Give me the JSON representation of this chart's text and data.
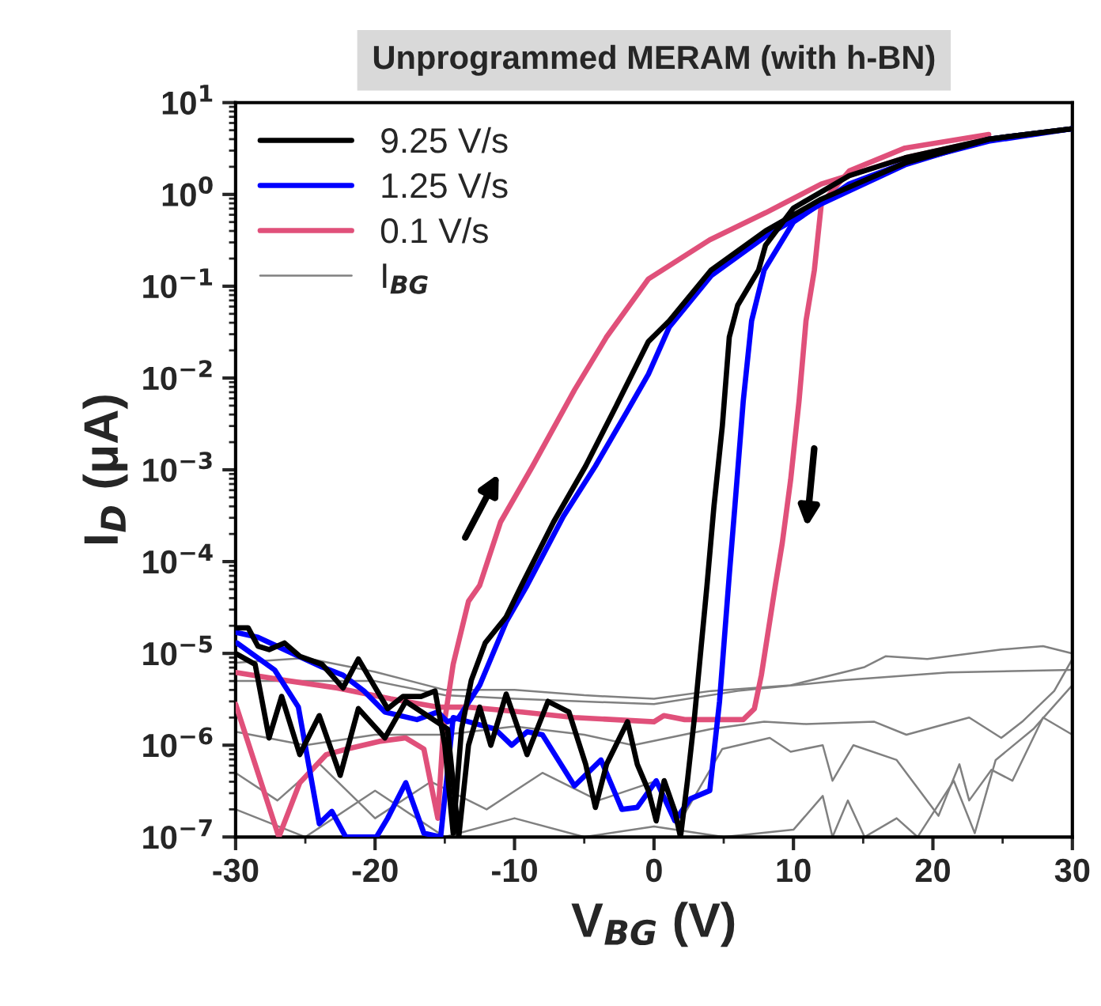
{
  "chart_data": {
    "type": "line",
    "title": "Unprogrammed MERAM (with h-BN)",
    "xlabel": "V$_{BG}$ (V)",
    "ylabel": "I$_{D}$ (μA)",
    "log": "y",
    "xlim": [
      -30,
      30
    ],
    "xticks": [
      -30,
      -20,
      -10,
      0,
      10,
      20,
      30
    ],
    "ylim": [
      1e-07,
      10
    ],
    "yticks": [
      {
        "value": 1e-07,
        "label": "10$^{−7}$"
      },
      {
        "value": 1e-06,
        "label": "10$^{−6}$"
      },
      {
        "value": 1e-05,
        "label": "10$^{−5}$"
      },
      {
        "value": 0.0001,
        "label": "10$^{−4}$"
      },
      {
        "value": 0.001,
        "label": "10$^{−3}$"
      },
      {
        "value": 0.01,
        "label": "10$^{−2}$"
      },
      {
        "value": 0.1,
        "label": "10$^{−1}$"
      },
      {
        "value": 1,
        "label": "10$^{0}$"
      },
      {
        "value": 10,
        "label": "10$^{1}$"
      }
    ],
    "legend": "top left",
    "line_style": "solid",
    "series": [
      {
        "name": "9.25 V/s",
        "color": "#000000",
        "x": [
          -30,
          -29.1,
          -28.4,
          -27.6,
          -26.5,
          -25.4,
          -23.8,
          -22.3,
          -21.2,
          -20.2,
          -19.1,
          -18.0,
          -16.7,
          -15.7,
          -15.0,
          -14.4,
          -13.8,
          -13.1,
          -12.1,
          -10.6,
          -9.5,
          -7.2,
          -4.9,
          -2.7,
          -0.4,
          1.1,
          4.1,
          8,
          12,
          18,
          24,
          30
        ],
        "values": [
          1.9e-05,
          1.9e-05,
          1.2e-05,
          1.1e-05,
          1.3e-05,
          9.3e-06,
          7.6e-06,
          4.2e-06,
          8.7e-06,
          4.8e-06,
          2.5e-06,
          3.4e-06,
          3.4e-06,
          3.9e-06,
          1e-06,
          1.1e-07,
          1.5e-06,
          5.1e-06,
          1.3e-05,
          2.5e-05,
          5.5e-05,
          0.00027,
          0.0011,
          0.005,
          0.025,
          0.042,
          0.15,
          0.4,
          0.89,
          2.2,
          4.0,
          5.2
        ]
      },
      {
        "color": "#000000",
        "x": [
          30,
          24,
          18,
          14,
          10,
          8,
          7.5,
          6.0,
          5.4,
          4.9,
          4.3,
          3.8,
          2.9,
          2.4,
          1.9,
          1.5,
          0.73,
          0.16,
          -0.4,
          -1.2,
          -1.9,
          -3.4,
          -4.2,
          -4.9,
          -6.1,
          -7.6,
          -9.1,
          -10.6,
          -11.7,
          -12.5,
          -13.3,
          -14.0,
          -14.8,
          -17.8,
          -19.3,
          -21.2,
          -22.5,
          -24.0,
          -25.4,
          -26.7,
          -27.6,
          -28.6,
          -30
        ],
        "values": [
          5.2,
          4.0,
          2.5,
          1.6,
          0.71,
          0.28,
          0.15,
          0.062,
          0.028,
          0.003,
          0.0004,
          5.5e-05,
          2e-06,
          4.1e-07,
          1e-07,
          1.9e-07,
          4.1e-07,
          1.5e-07,
          3.2e-07,
          6.2e-07,
          1.8e-06,
          6.2e-07,
          2.1e-07,
          6.2e-07,
          2.3e-06,
          3e-06,
          7.9e-07,
          3.6e-06,
          1e-06,
          2.6e-06,
          1e-06,
          1e-07,
          1.5e-06,
          3e-06,
          1.2e-06,
          2.5e-06,
          4.7e-07,
          2.1e-06,
          7.9e-07,
          3.4e-06,
          1.2e-06,
          7.6e-06,
          1e-05
        ]
      },
      {
        "name": "1.25 V/s",
        "color": "#0000ff",
        "x": [
          -30,
          -28.4,
          -26.5,
          -23.8,
          -22.3,
          -20.8,
          -19.3,
          -17.0,
          -15.5,
          -14.8,
          -14.0,
          -12.5,
          -10.6,
          -9.1,
          -6.5,
          -4.2,
          -1.9,
          -0.4,
          1.1,
          4.1,
          8,
          12,
          18,
          24,
          30
        ],
        "values": [
          1.7e-05,
          1.5e-05,
          1.1e-05,
          7.1e-06,
          5.8e-06,
          3.9e-06,
          2.3e-06,
          1.9e-06,
          2.3e-06,
          1.8e-06,
          2e-06,
          4.5e-06,
          2.2e-05,
          5.5e-05,
          0.00031,
          0.0011,
          0.0044,
          0.011,
          0.036,
          0.13,
          0.35,
          0.79,
          2.1,
          4.0,
          5.2
        ]
      },
      {
        "color": "#0000ff",
        "x": [
          30,
          24,
          18,
          14,
          10,
          7.9,
          7.0,
          6.4,
          5.8,
          5.4,
          4.7,
          4.0,
          2.6,
          1.5,
          0.16,
          -1.2,
          -2.3,
          -3.8,
          -5.7,
          -8.0,
          -9.1,
          -10.2,
          -11.4,
          -13.3,
          -14.4,
          -15.3,
          -16.5,
          -17.8,
          -19.1,
          -19.9,
          -22.1,
          -23.1,
          -24.0,
          -25.5,
          -27.2,
          -29.9
        ],
        "values": [
          5.2,
          3.8,
          2.2,
          1.3,
          0.5,
          0.15,
          0.042,
          0.0056,
          0.0004,
          7.2e-05,
          3e-06,
          3.2e-07,
          2.6e-07,
          1.5e-07,
          4.1e-07,
          2.1e-07,
          2e-07,
          6.9e-07,
          3.6e-07,
          1.3e-06,
          1.4e-06,
          1e-06,
          1.5e-06,
          1.8e-06,
          2e-06,
          1e-07,
          1.1e-07,
          3.9e-07,
          1.6e-07,
          1e-07,
          1e-07,
          1.9e-07,
          1.4e-07,
          2.6e-06,
          6.6e-06,
          1.3e-05
        ]
      },
      {
        "name": "0.1 V/s",
        "color": "#e0507a",
        "x": [
          -30,
          -26.9,
          -25.4,
          -23.5,
          -22.0,
          -19.7,
          -17.8,
          -16.5,
          -15.5,
          -15.1,
          -14.4,
          -13.3,
          -12.5,
          -11.0,
          -8.7,
          -5.7,
          -3.4,
          -0.4,
          4,
          8,
          12,
          18,
          24
        ],
        "values": [
          2.8e-06,
          1e-07,
          3.9e-07,
          7.9e-07,
          9.1e-07,
          1.1e-06,
          1.2e-06,
          9.1e-07,
          1.6e-07,
          1.5e-06,
          7.6e-06,
          3.7e-05,
          5.5e-05,
          0.00027,
          0.0011,
          0.0074,
          0.028,
          0.12,
          0.32,
          0.63,
          1.3,
          2.5,
          4.0
        ]
      },
      {
        "color": "#e0507a",
        "x": [
          24,
          18,
          14,
          12,
          11.5,
          10.9,
          10.4,
          9.8,
          9.2,
          8.7,
          7.7,
          7.2,
          6.4,
          2.2,
          0.7,
          0.0,
          -5.7,
          -9.5,
          -13.3,
          -15.5,
          -18.9,
          -22.7,
          -26.5,
          -30
        ],
        "values": [
          4.5,
          3.2,
          1.8,
          0.79,
          0.15,
          0.042,
          0.0056,
          0.00078,
          0.00016,
          5.5e-05,
          5.8e-06,
          2.5e-06,
          1.9e-06,
          1.9e-06,
          2.1e-06,
          1.8e-06,
          2e-06,
          2.3e-06,
          2.6e-06,
          2.6e-06,
          3.2e-06,
          4.2e-06,
          5.1e-06,
          6.2e-06
        ]
      },
      {
        "name": "I$_{BG}$",
        "color": "#808080",
        "x": [
          -30,
          -25,
          -20,
          -15,
          -10,
          -5,
          0,
          4.1,
          9.8,
          15.1,
          16.6,
          19.6,
          24.9,
          27.9,
          30
        ],
        "values": [
          7.9e-06,
          8.9e-06,
          6.3e-06,
          4e-06,
          4e-06,
          3.5e-06,
          3.2e-06,
          3.9e-06,
          4.5e-06,
          7.1e-06,
          9.3e-06,
          8.7e-06,
          1.1e-05,
          1.2e-05,
          1e-05
        ]
      },
      {
        "color": "#808080",
        "x": [
          -30,
          -20,
          -15,
          -10,
          0,
          6.0,
          13.6,
          21.1,
          30
        ],
        "values": [
          5e-06,
          5e-06,
          3.5e-06,
          3.2e-06,
          2.8e-06,
          3.9e-06,
          5.1e-06,
          6.2e-06,
          6.6e-06
        ]
      },
      {
        "color": "#808080",
        "x": [
          -30,
          -25,
          -20,
          -15,
          -10,
          -5,
          -1.5,
          4.1,
          7.9,
          10.9,
          15.8,
          18.1,
          22.6,
          24.9,
          26.4,
          28.7,
          30
        ],
        "values": [
          1.4e-06,
          1e-06,
          1.3e-06,
          1.3e-06,
          1.6e-06,
          1.3e-06,
          1e-06,
          1.5e-06,
          1.8e-06,
          1.7e-06,
          1.8e-06,
          1.3e-06,
          2e-06,
          1.2e-06,
          1.8e-06,
          3.9e-06,
          8.7e-06
        ]
      },
      {
        "color": "#808080",
        "x": [
          -30,
          -27,
          -24,
          -20,
          -16,
          -12,
          -8,
          -4,
          0,
          2,
          4.9,
          8.3,
          9.8,
          12.1,
          12.8,
          14.3,
          17.4,
          20.4,
          21.9,
          22.6,
          24.2,
          25.7,
          27.9,
          30
        ],
        "values": [
          5e-07,
          2.5e-07,
          6.3e-07,
          1.6e-07,
          4e-07,
          2e-07,
          5e-07,
          2.5e-07,
          4e-07,
          1.6e-07,
          9.1e-07,
          1.2e-06,
          8.5e-07,
          1e-06,
          4.1e-07,
          1e-06,
          6.9e-07,
          1.7e-07,
          6.2e-07,
          2.5e-07,
          5.4e-07,
          4.1e-07,
          2e-06,
          1.3e-06
        ]
      },
      {
        "color": "#808080",
        "x": [
          -30,
          -25,
          -20,
          -15,
          -10,
          -5,
          0,
          5,
          10,
          12.1,
          12.8,
          13.9,
          15.1,
          17.4,
          18.9,
          21.5,
          23.0,
          24.5,
          27.2,
          30
        ],
        "values": [
          2e-07,
          1e-07,
          3.2e-07,
          1e-07,
          1.6e-07,
          1e-07,
          1.3e-07,
          1e-07,
          1.2e-07,
          2.8e-07,
          1e-07,
          2.5e-07,
          1e-07,
          1.6e-07,
          1e-07,
          4.1e-07,
          1.1e-07,
          6.9e-07,
          1.5e-06,
          4.5e-06
        ]
      }
    ]
  }
}
